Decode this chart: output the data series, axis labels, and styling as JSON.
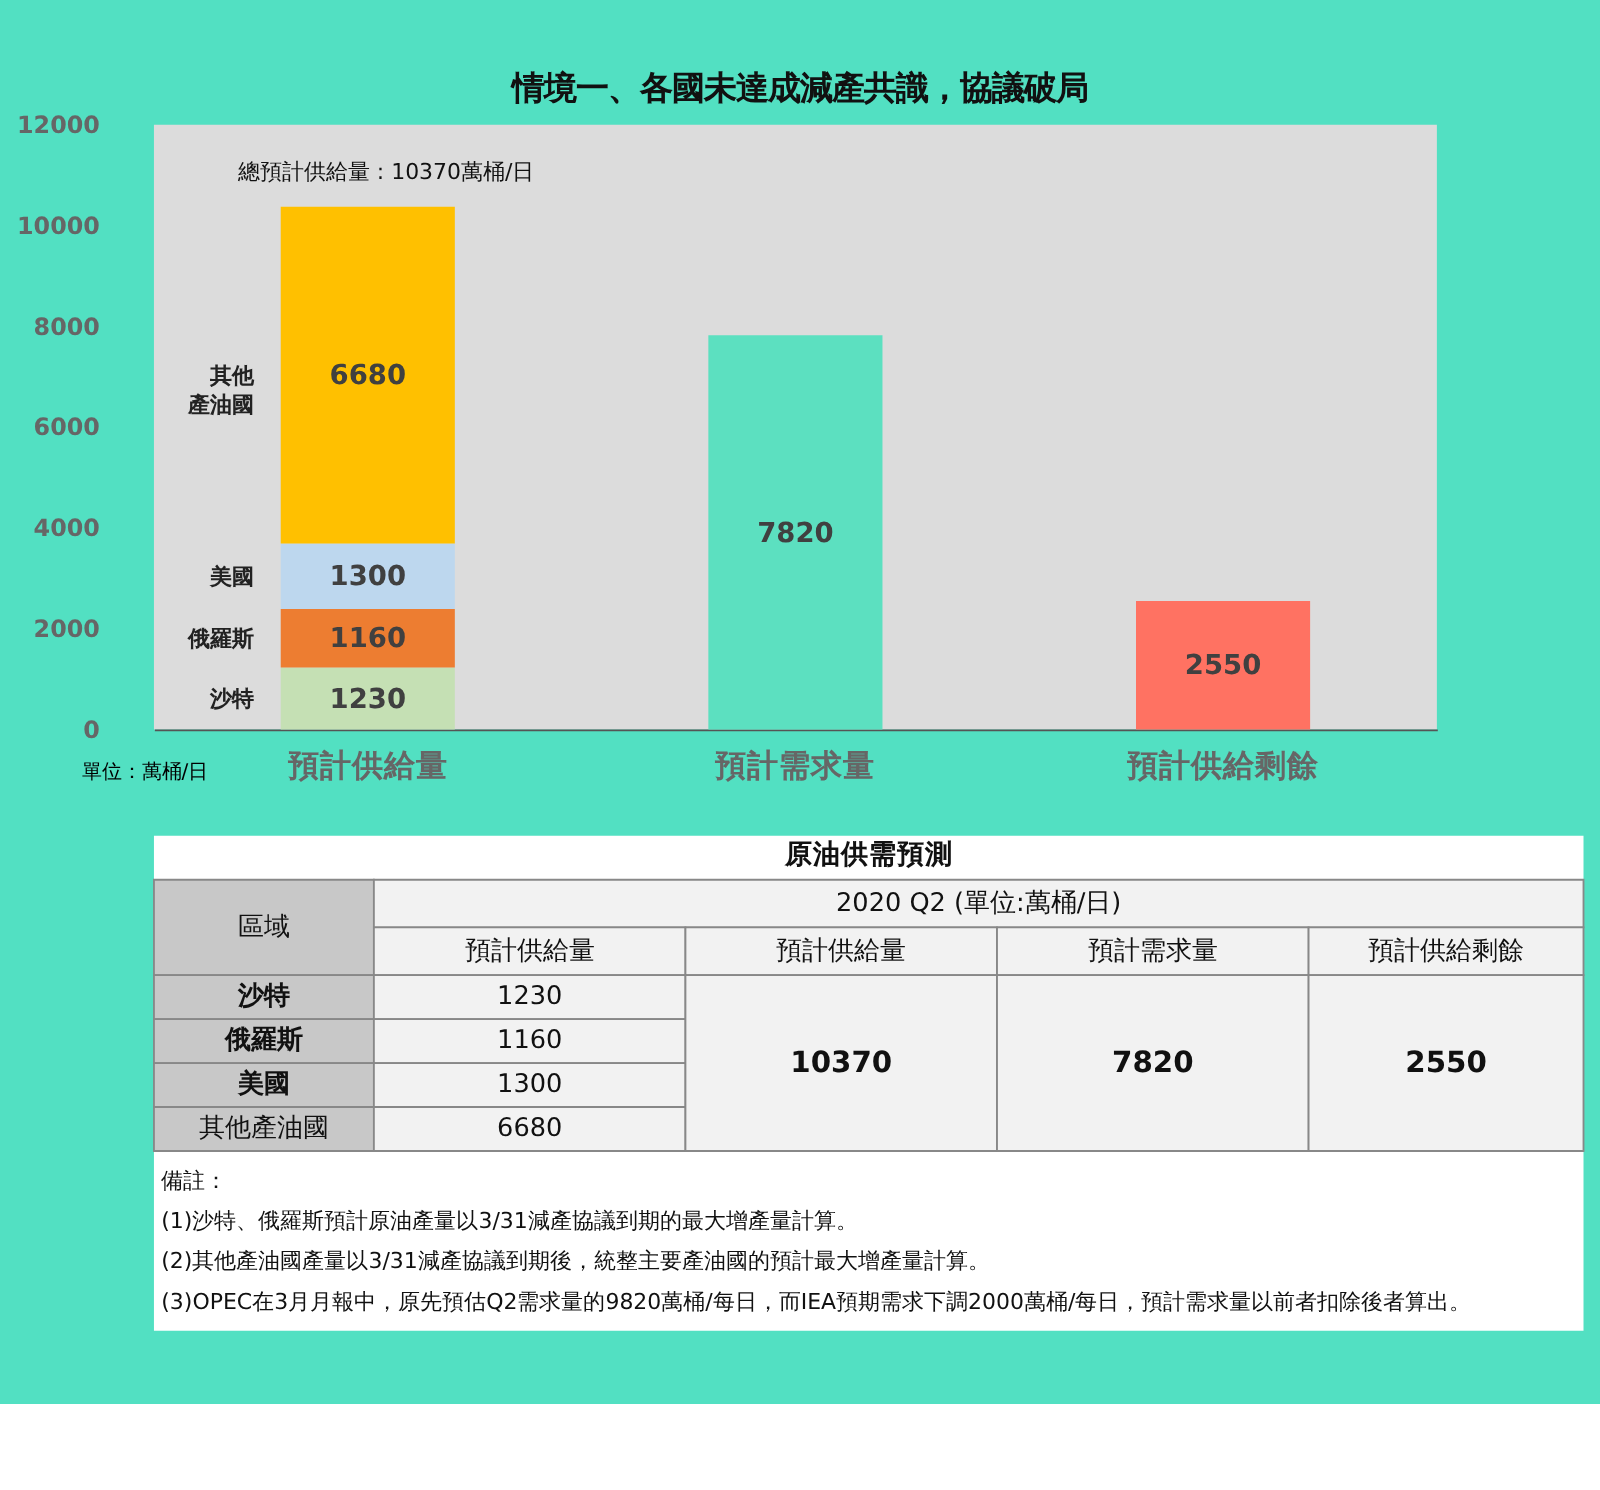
{
  "chart_data": {
    "type": "bar",
    "title": "情境一、各國未達成減產共識，協議破局",
    "categories": [
      "預計供給量",
      "預計需求量",
      "預計供給剩餘"
    ],
    "ylabel": "單位：萬桶/日",
    "stacked": true,
    "data_labels": true,
    "grid": false,
    "ylim": [
      0,
      12000
    ],
    "yticks": [
      0,
      2000,
      4000,
      6000,
      8000,
      10000,
      12000
    ],
    "totals": [
      "總預計供給量 : 10370萬桶/日",
      null,
      null
    ],
    "series": [
      {
        "name": "沙特",
        "color": "#c5e0b4",
        "values": [
          1230,
          null,
          null
        ]
      },
      {
        "name": "俄羅斯",
        "color": "#ed7d31",
        "values": [
          1160,
          null,
          null
        ]
      },
      {
        "name": "美國",
        "color": "#bdd7ee",
        "values": [
          1300,
          null,
          null
        ]
      },
      {
        "name": "其他產油國",
        "color": "#ffc000",
        "values": [
          6680,
          null,
          null
        ]
      },
      {
        "color": "#5ce0c0",
        "values": [
          null,
          7820,
          null
        ]
      },
      {
        "color": "#ff7262",
        "values": [
          null,
          null,
          2550
        ]
      }
    ],
    "annotations": [
      "原油供需預測",
      "區域",
      "2020 Q2 (單位:萬桶/日)",
      "預計供給量",
      "預計供給量",
      "預計需求量",
      "預計供給剩餘",
      "沙特",
      "1230",
      "俄羅斯",
      "1160",
      "美國",
      "1300",
      "其他產油國",
      "6680",
      "10370",
      "7820",
      "2550",
      "備註：",
      "(1)沙特、俄羅斯預計原油產量以3/31減產協議到期的最大增產量計算。",
      "(2)其他產油國產量以3/31減產協議到期後，統整主要產油國的預計最大增產量計算。",
      "(3)OPEC在3月月報中，原先預估Q2需求量的9820萬桶/每日，而IEA預期需求下調2000萬桶/每日，預計需求量以前者扣除後者算出。"
    ]
  }
}
